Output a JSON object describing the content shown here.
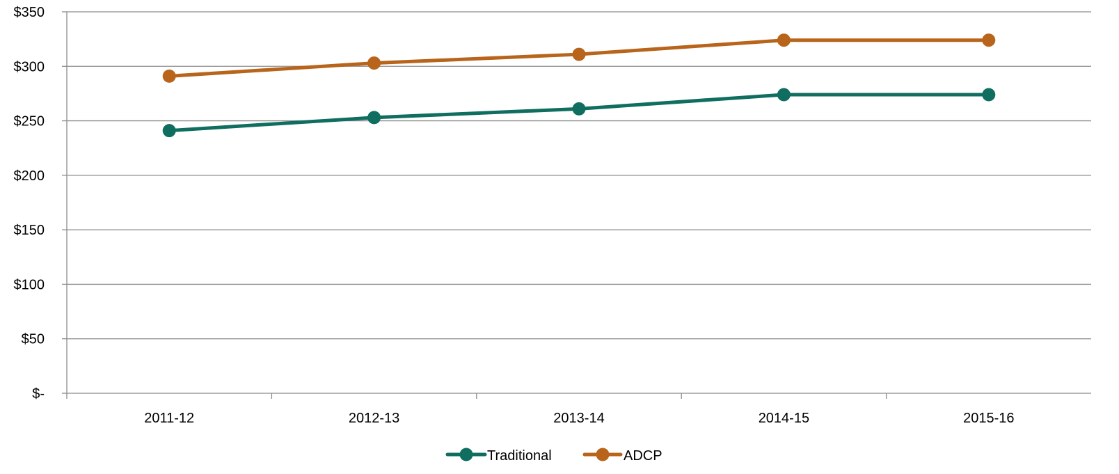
{
  "chart_data": {
    "type": "line",
    "title": "",
    "xlabel": "",
    "ylabel": "",
    "categories": [
      "2011-12",
      "2012-13",
      "2013-14",
      "2014-15",
      "2015-16"
    ],
    "series": [
      {
        "name": "Traditional",
        "color": "#0f6e5f",
        "values": [
          241,
          253,
          261,
          274,
          274
        ]
      },
      {
        "name": "ADCP",
        "color": "#b8651b",
        "values": [
          291,
          303,
          311,
          324,
          324
        ]
      }
    ],
    "ylim": [
      0,
      350
    ],
    "y_ticks": [
      {
        "value": 0,
        "label": "$-"
      },
      {
        "value": 50,
        "label": "$50"
      },
      {
        "value": 100,
        "label": "$100"
      },
      {
        "value": 150,
        "label": "$150"
      },
      {
        "value": 200,
        "label": "$200"
      },
      {
        "value": 250,
        "label": "$250"
      },
      {
        "value": 300,
        "label": "$300"
      },
      {
        "value": 350,
        "label": "$350"
      }
    ],
    "grid": true,
    "legend_position": "bottom-center"
  }
}
